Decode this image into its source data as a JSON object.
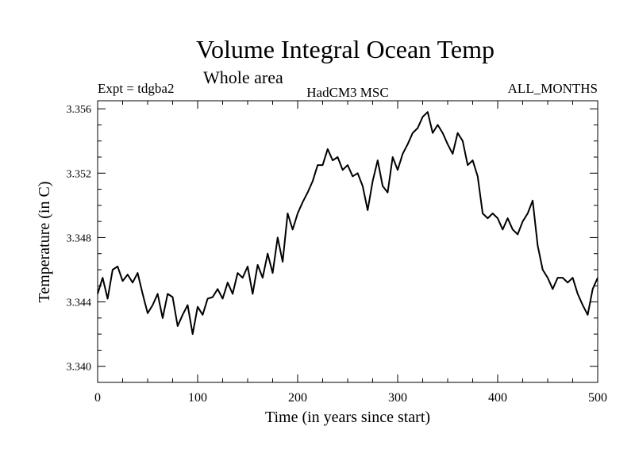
{
  "chart_data": {
    "type": "line",
    "title": "Volume Integral Ocean Temp",
    "subtitle": "Whole area",
    "annotations": {
      "left": "Expt = tdgba2",
      "center": "HadCM3 MSC",
      "right": "ALL_MONTHS"
    },
    "xlabel": "Time (in years since start)",
    "ylabel": "Temperature (in C)",
    "xlim": [
      0,
      500
    ],
    "ylim": [
      3.339,
      3.3565
    ],
    "x_ticks": [
      0,
      100,
      200,
      300,
      400,
      500
    ],
    "x_tick_labels": [
      "0",
      "100",
      "200",
      "300",
      "400",
      "500"
    ],
    "y_ticks": [
      3.34,
      3.344,
      3.348,
      3.352,
      3.356
    ],
    "y_tick_labels": [
      "3.340",
      "3.344",
      "3.348",
      "3.352",
      "3.356"
    ],
    "grid": false,
    "series": [
      {
        "name": "Volume Integral Ocean Temp",
        "color": "#000000",
        "x": [
          0,
          5,
          10,
          15,
          20,
          25,
          30,
          35,
          40,
          45,
          50,
          55,
          60,
          65,
          70,
          75,
          80,
          85,
          90,
          95,
          100,
          105,
          110,
          115,
          120,
          125,
          130,
          135,
          140,
          145,
          150,
          155,
          160,
          165,
          170,
          175,
          180,
          185,
          190,
          195,
          200,
          205,
          210,
          215,
          220,
          225,
          230,
          235,
          240,
          245,
          250,
          255,
          260,
          265,
          270,
          275,
          280,
          285,
          290,
          295,
          300,
          305,
          310,
          315,
          320,
          325,
          330,
          335,
          340,
          345,
          350,
          355,
          360,
          365,
          370,
          375,
          380,
          385,
          390,
          395,
          400,
          405,
          410,
          415,
          420,
          425,
          430,
          435,
          440,
          445,
          450,
          455,
          460,
          465,
          470,
          475,
          480,
          485,
          490,
          495,
          500
        ],
        "values": [
          3.3445,
          3.3455,
          3.3442,
          3.346,
          3.3462,
          3.3453,
          3.3457,
          3.3452,
          3.3458,
          3.3445,
          3.3433,
          3.3438,
          3.3445,
          3.343,
          3.3445,
          3.3443,
          3.3425,
          3.3432,
          3.3438,
          3.342,
          3.3437,
          3.3432,
          3.3442,
          3.3443,
          3.3448,
          3.3442,
          3.3452,
          3.3445,
          3.3458,
          3.3455,
          3.3462,
          3.3445,
          3.3463,
          3.3455,
          3.347,
          3.3458,
          3.348,
          3.3465,
          3.3495,
          3.3485,
          3.3495,
          3.3502,
          3.3508,
          3.3515,
          3.3525,
          3.3525,
          3.3535,
          3.3528,
          3.353,
          3.3522,
          3.3525,
          3.3518,
          3.352,
          3.3512,
          3.3497,
          3.3515,
          3.3528,
          3.3512,
          3.3508,
          3.353,
          3.3522,
          3.3532,
          3.3538,
          3.3545,
          3.3548,
          3.3555,
          3.3558,
          3.3545,
          3.355,
          3.3545,
          3.3538,
          3.3532,
          3.3545,
          3.354,
          3.3525,
          3.3528,
          3.3518,
          3.3495,
          3.3492,
          3.3495,
          3.3492,
          3.3485,
          3.3492,
          3.3485,
          3.3482,
          3.349,
          3.3495,
          3.3503,
          3.3475,
          3.346,
          3.3455,
          3.3448,
          3.3455,
          3.3455,
          3.3452,
          3.3455,
          3.3445,
          3.3438,
          3.3432,
          3.3448,
          3.3455
        ]
      }
    ]
  }
}
